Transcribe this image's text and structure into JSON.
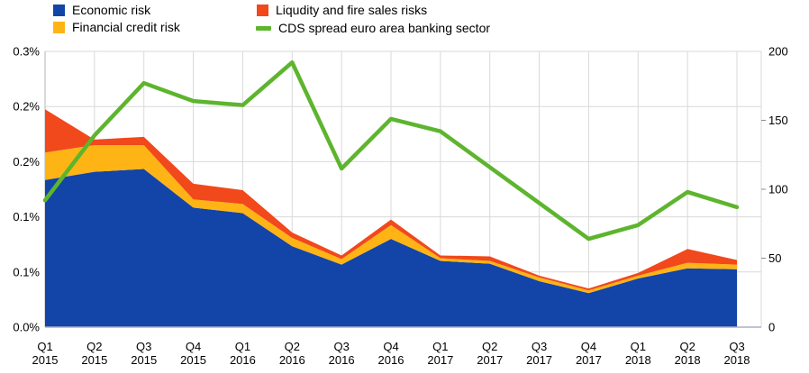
{
  "chart_data": {
    "type": "area",
    "subtype": "stacked-area-with-line-overlay",
    "categories": [
      "Q1 2015",
      "Q2 2015",
      "Q3 2015",
      "Q4 2015",
      "Q1 2016",
      "Q2 2016",
      "Q3 2016",
      "Q4 2016",
      "Q1 2017",
      "Q2 2017",
      "Q3 2017",
      "Q4 2017",
      "Q1 2018",
      "Q2 2018",
      "Q3 2018"
    ],
    "x_tick_labels": [
      {
        "quarter": "Q1",
        "year": "2015"
      },
      {
        "quarter": "Q2",
        "year": "2015"
      },
      {
        "quarter": "Q3",
        "year": "2015"
      },
      {
        "quarter": "Q4",
        "year": "2015"
      },
      {
        "quarter": "Q1",
        "year": "2016"
      },
      {
        "quarter": "Q2",
        "year": "2016"
      },
      {
        "quarter": "Q3",
        "year": "2016"
      },
      {
        "quarter": "Q4",
        "year": "2016"
      },
      {
        "quarter": "Q1",
        "year": "2017"
      },
      {
        "quarter": "Q2",
        "year": "2017"
      },
      {
        "quarter": "Q3",
        "year": "2017"
      },
      {
        "quarter": "Q4",
        "year": "2017"
      },
      {
        "quarter": "Q1",
        "year": "2018"
      },
      {
        "quarter": "Q2",
        "year": "2018"
      },
      {
        "quarter": "Q3",
        "year": "2018"
      }
    ],
    "series": [
      {
        "name": "Economic risk",
        "type": "area-stacked",
        "axis": "left",
        "color": "#1344a8",
        "marker": "square",
        "values": [
          0.16,
          0.169,
          0.172,
          0.13,
          0.124,
          0.088,
          0.068,
          0.096,
          0.072,
          0.069,
          0.05,
          0.037,
          0.053,
          0.064,
          0.063
        ]
      },
      {
        "name": "Financial credit risk",
        "type": "area-stacked",
        "axis": "left",
        "color": "#ffb415",
        "marker": "square",
        "values": [
          0.03,
          0.029,
          0.026,
          0.009,
          0.01,
          0.009,
          0.006,
          0.015,
          0.003,
          0.003,
          0.004,
          0.003,
          0.003,
          0.006,
          0.005
        ]
      },
      {
        "name": "Liqudity and fire sales risks",
        "type": "area-stacked",
        "axis": "left",
        "color": "#f1481c",
        "marker": "square",
        "values": [
          0.047,
          0.006,
          0.009,
          0.017,
          0.015,
          0.006,
          0.004,
          0.006,
          0.003,
          0.005,
          0.002,
          0.002,
          0.003,
          0.015,
          0.005
        ]
      },
      {
        "name": "CDS spread euro area banking sector",
        "type": "line",
        "axis": "right",
        "color": "#5db52e",
        "marker": "line",
        "values": [
          92,
          139,
          177,
          164,
          161,
          192,
          115,
          151,
          142,
          116,
          90,
          64,
          74,
          98,
          87
        ]
      }
    ],
    "left_axis": {
      "range": [
        0,
        0.3
      ],
      "unit": "%",
      "tick_values": [
        0.3,
        0.24,
        0.18,
        0.12,
        0.06,
        0.0
      ],
      "tick_labels": [
        "0.3%",
        "0.2%",
        "0.2%",
        "0.1%",
        "0.1%",
        "0.0%"
      ]
    },
    "right_axis": {
      "range": [
        0,
        200
      ],
      "tick_values": [
        200,
        150,
        100,
        50,
        0
      ],
      "tick_labels": [
        "200",
        "150",
        "100",
        "50",
        "0"
      ]
    },
    "grid": {
      "horizontal": true,
      "vertical": true
    },
    "legend_position": "top",
    "style_colors": {
      "gridline": "#d9d9d9",
      "plot_left_border": "#b5b5b5",
      "bottom_axis": "#aab2c8",
      "right_tick": "#8c8c8c",
      "text": "#000000"
    }
  }
}
